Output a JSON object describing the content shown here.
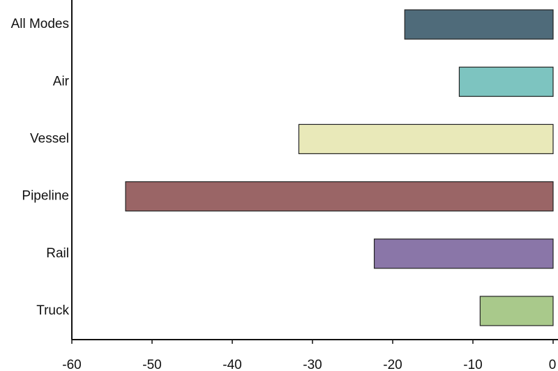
{
  "chart_data": {
    "type": "bar",
    "orientation": "horizontal",
    "categories": [
      "All Modes",
      "Air",
      "Vessel",
      "Pipeline",
      "Rail",
      "Truck"
    ],
    "values": [
      -18.5,
      -11.7,
      -31.7,
      -53.3,
      -22.3,
      -9.1
    ],
    "colors": [
      "#4f6b7a",
      "#7dc4c0",
      "#e9e9b9",
      "#9a6566",
      "#8a76a8",
      "#a9c98b"
    ],
    "xlim": [
      -60,
      0
    ],
    "xticks": [
      -60,
      -50,
      -40,
      -30,
      -20,
      -10,
      0
    ]
  }
}
